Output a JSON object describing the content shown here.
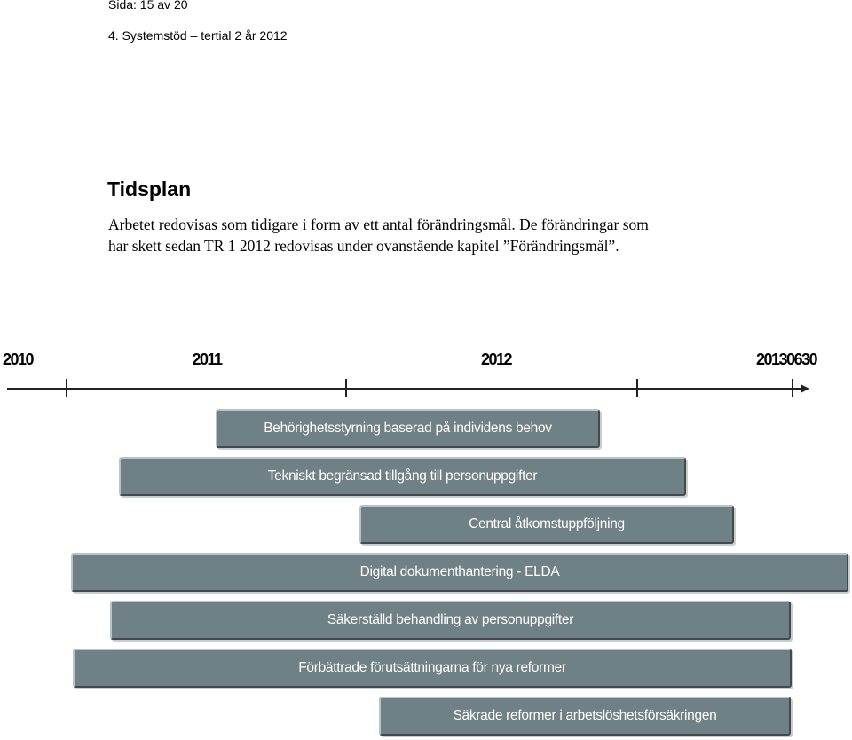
{
  "header": {
    "page_label": "Sida: 15 av 20",
    "section_label": "4. Systemstöd – tertial 2 år 2012"
  },
  "content": {
    "heading": "Tidsplan",
    "body": "Arbetet redovisas som tidigare i form av ett antal förändringsmål. De förändringar som har skett sedan TR 1 2012 redovisas under ovanstående kapitel ”Förändringsmål”."
  },
  "timeline": {
    "years": [
      "2010",
      "2011",
      "2012",
      "20130630"
    ],
    "bars": [
      "Behörighetsstyrning baserad på individens behov",
      "Tekniskt begränsad tillgång till personuppgifter",
      "Central åtkomstuppföljning",
      "Digital dokumenthantering - ELDA",
      "Säkerställd behandling av personuppgifter",
      "Förbättrade förutsättningarna för nya reformer",
      "Säkrade reformer i arbetslöshetsförsäkringen"
    ],
    "colors": {
      "bar_fill": "#6f8184",
      "bar_text": "#ffffff",
      "axis": "#222222"
    }
  }
}
